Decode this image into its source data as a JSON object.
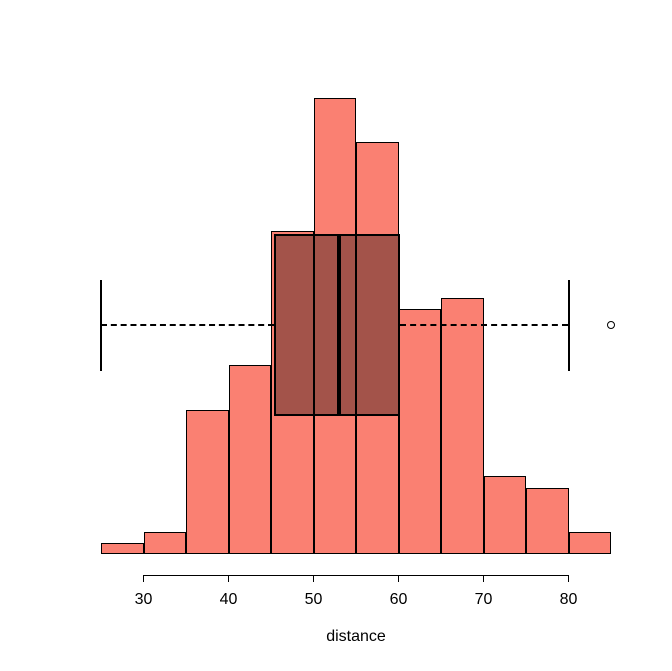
{
  "figure": {
    "background": "#ffffff",
    "text_color": "#000000"
  },
  "chart_data": {
    "type": "histogram_with_boxplot_overlay",
    "title": "",
    "xlabel": "distance",
    "ylabel": "",
    "grid": false,
    "legend": null,
    "xlim": [
      25,
      85
    ],
    "x_ticks": [
      30,
      40,
      50,
      60,
      70,
      80
    ],
    "bin_edges": [
      25,
      30,
      35,
      40,
      45,
      50,
      55,
      60,
      65,
      70,
      75,
      80,
      85
    ],
    "frequencies": [
      1,
      2,
      13,
      17,
      29,
      41,
      37,
      22,
      23,
      7,
      6,
      2
    ],
    "bar_fill": "#FA8072",
    "bar_border": "#000000",
    "boxplot": {
      "orientation": "horizontal",
      "whisker_low": 25,
      "q1": 45.4,
      "median": 53,
      "q3": 60.2,
      "whisker_high": 80,
      "outliers": [
        85
      ],
      "box_fill": "rgba(0,0,0,0.35)",
      "line_color": "#000000",
      "whisker_style": "dashed"
    }
  }
}
